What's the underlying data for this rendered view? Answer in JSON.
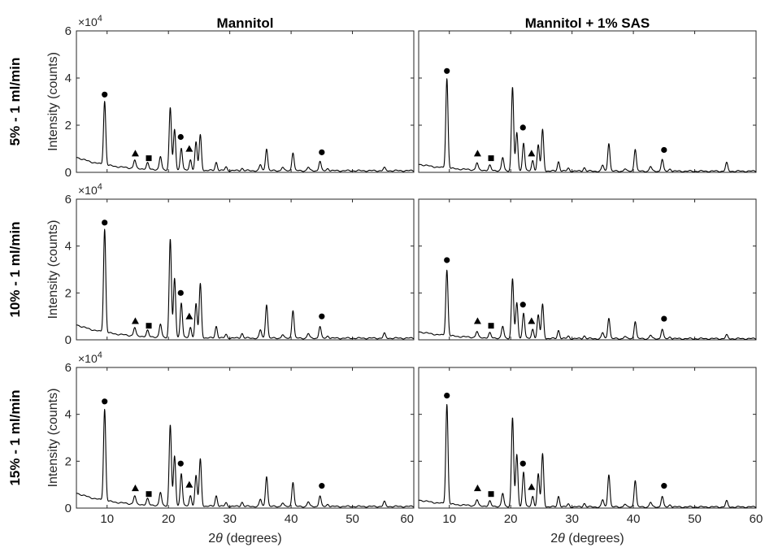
{
  "figure": {
    "column_titles": [
      "Mannitol",
      "Mannitol + 1% SAS"
    ],
    "row_titles": [
      "5% - 1 ml/min",
      "10% - 1 ml/min",
      "15% - 1 ml/min"
    ],
    "xlabel_prefix": "2",
    "xlabel_theta": "θ",
    "xlabel_suffix": " (degrees)",
    "ylabel": "Intensity (counts)",
    "y_exponent_base": "×10",
    "y_exponent_power": "4",
    "colors": {
      "line": "#000000",
      "axes": "#262626",
      "markers": "#000000"
    }
  },
  "chart_data": [
    {
      "type": "line",
      "row": 0,
      "col": 0,
      "xlim": [
        5,
        60
      ],
      "ylim": [
        0,
        6
      ],
      "x_ticks": [
        10,
        20,
        30,
        40,
        50,
        60
      ],
      "y_ticks": [
        0,
        2,
        4,
        6
      ],
      "baseline": {
        "start": 0.65,
        "end": 0.07
      },
      "peaks": [
        [
          9.6,
          2.7
        ],
        [
          14.5,
          0.35
        ],
        [
          16.6,
          0.25
        ],
        [
          18.7,
          0.55
        ],
        [
          20.3,
          2.65
        ],
        [
          21.0,
          1.7
        ],
        [
          22.1,
          0.95
        ],
        [
          23.6,
          0.45
        ],
        [
          24.5,
          1.2
        ],
        [
          25.2,
          1.5
        ],
        [
          27.8,
          0.35
        ],
        [
          29.4,
          0.15
        ],
        [
          32.0,
          0.1
        ],
        [
          35.0,
          0.25
        ],
        [
          36.0,
          0.95
        ],
        [
          38.6,
          0.15
        ],
        [
          40.3,
          0.78
        ],
        [
          42.8,
          0.15
        ],
        [
          44.7,
          0.4
        ],
        [
          46.0,
          0.1
        ],
        [
          55.2,
          0.12
        ]
      ],
      "markers": [
        {
          "shape": "circle",
          "x": 9.6,
          "y": 3.3
        },
        {
          "shape": "triangle",
          "x": 14.6,
          "y": 0.8
        },
        {
          "shape": "square",
          "x": 16.8,
          "y": 0.6
        },
        {
          "shape": "circle",
          "x": 22.0,
          "y": 1.5
        },
        {
          "shape": "triangle",
          "x": 23.4,
          "y": 1.0
        },
        {
          "shape": "circle",
          "x": 45.0,
          "y": 0.85
        }
      ]
    },
    {
      "type": "line",
      "row": 0,
      "col": 1,
      "xlim": [
        5,
        60
      ],
      "ylim": [
        0,
        6
      ],
      "x_ticks": [
        10,
        20,
        30,
        40,
        50,
        60
      ],
      "y_ticks": [
        0,
        2,
        4,
        6
      ],
      "baseline": {
        "start": 0.35,
        "end": 0.05
      },
      "peaks": [
        [
          9.6,
          3.8
        ],
        [
          14.5,
          0.3
        ],
        [
          16.6,
          0.2
        ],
        [
          18.7,
          0.55
        ],
        [
          20.3,
          3.55
        ],
        [
          21.0,
          1.6
        ],
        [
          22.1,
          1.2
        ],
        [
          23.6,
          0.45
        ],
        [
          24.5,
          1.1
        ],
        [
          25.2,
          1.75
        ],
        [
          27.8,
          0.4
        ],
        [
          29.4,
          0.12
        ],
        [
          32.0,
          0.15
        ],
        [
          35.0,
          0.25
        ],
        [
          36.0,
          1.2
        ],
        [
          38.6,
          0.1
        ],
        [
          40.3,
          0.95
        ],
        [
          42.8,
          0.2
        ],
        [
          44.7,
          0.5
        ],
        [
          46.0,
          0.1
        ],
        [
          55.2,
          0.35
        ]
      ],
      "markers": [
        {
          "shape": "circle",
          "x": 9.6,
          "y": 4.3
        },
        {
          "shape": "triangle",
          "x": 14.6,
          "y": 0.8
        },
        {
          "shape": "square",
          "x": 16.8,
          "y": 0.6
        },
        {
          "shape": "circle",
          "x": 22.0,
          "y": 1.9
        },
        {
          "shape": "triangle",
          "x": 23.4,
          "y": 0.8
        },
        {
          "shape": "circle",
          "x": 45.0,
          "y": 0.95
        }
      ]
    },
    {
      "type": "line",
      "row": 1,
      "col": 0,
      "xlim": [
        5,
        60
      ],
      "ylim": [
        0,
        6
      ],
      "x_ticks": [
        10,
        20,
        30,
        40,
        50,
        60
      ],
      "y_ticks": [
        0,
        2,
        4,
        6
      ],
      "baseline": {
        "start": 0.65,
        "end": 0.07
      },
      "peaks": [
        [
          9.6,
          4.4
        ],
        [
          14.5,
          0.35
        ],
        [
          16.6,
          0.25
        ],
        [
          18.7,
          0.55
        ],
        [
          20.3,
          4.2
        ],
        [
          21.0,
          2.5
        ],
        [
          22.1,
          1.5
        ],
        [
          23.6,
          0.45
        ],
        [
          24.5,
          1.45
        ],
        [
          25.2,
          2.3
        ],
        [
          27.8,
          0.5
        ],
        [
          29.4,
          0.15
        ],
        [
          32.0,
          0.2
        ],
        [
          35.0,
          0.35
        ],
        [
          36.0,
          1.45
        ],
        [
          38.6,
          0.15
        ],
        [
          40.3,
          1.2
        ],
        [
          42.8,
          0.2
        ],
        [
          44.7,
          0.5
        ],
        [
          46.0,
          0.1
        ],
        [
          55.2,
          0.2
        ]
      ],
      "markers": [
        {
          "shape": "circle",
          "x": 9.6,
          "y": 5.0
        },
        {
          "shape": "triangle",
          "x": 14.6,
          "y": 0.8
        },
        {
          "shape": "square",
          "x": 16.8,
          "y": 0.6
        },
        {
          "shape": "circle",
          "x": 22.0,
          "y": 2.0
        },
        {
          "shape": "triangle",
          "x": 23.4,
          "y": 1.0
        },
        {
          "shape": "circle",
          "x": 45.0,
          "y": 1.0
        }
      ]
    },
    {
      "type": "line",
      "row": 1,
      "col": 1,
      "xlim": [
        5,
        60
      ],
      "ylim": [
        0,
        6
      ],
      "x_ticks": [
        10,
        20,
        30,
        40,
        50,
        60
      ],
      "y_ticks": [
        0,
        2,
        4,
        6
      ],
      "baseline": {
        "start": 0.35,
        "end": 0.05
      },
      "peaks": [
        [
          9.6,
          2.8
        ],
        [
          14.5,
          0.25
        ],
        [
          16.6,
          0.2
        ],
        [
          18.7,
          0.5
        ],
        [
          20.3,
          2.55
        ],
        [
          21.0,
          1.5
        ],
        [
          22.1,
          1.1
        ],
        [
          23.6,
          0.4
        ],
        [
          24.5,
          1.0
        ],
        [
          25.2,
          1.45
        ],
        [
          27.8,
          0.35
        ],
        [
          29.4,
          0.1
        ],
        [
          32.0,
          0.12
        ],
        [
          35.0,
          0.25
        ],
        [
          36.0,
          0.9
        ],
        [
          38.6,
          0.1
        ],
        [
          40.3,
          0.75
        ],
        [
          42.8,
          0.15
        ],
        [
          44.7,
          0.4
        ],
        [
          46.0,
          0.08
        ],
        [
          55.2,
          0.15
        ]
      ],
      "markers": [
        {
          "shape": "circle",
          "x": 9.6,
          "y": 3.4
        },
        {
          "shape": "triangle",
          "x": 14.6,
          "y": 0.8
        },
        {
          "shape": "square",
          "x": 16.8,
          "y": 0.6
        },
        {
          "shape": "circle",
          "x": 22.0,
          "y": 1.5
        },
        {
          "shape": "triangle",
          "x": 23.4,
          "y": 0.8
        },
        {
          "shape": "circle",
          "x": 45.0,
          "y": 0.9
        }
      ]
    },
    {
      "type": "line",
      "row": 2,
      "col": 0,
      "xlim": [
        5,
        60
      ],
      "ylim": [
        0,
        6
      ],
      "x_ticks": [
        10,
        20,
        30,
        40,
        50,
        60
      ],
      "y_ticks": [
        0,
        2,
        4,
        6
      ],
      "baseline": {
        "start": 0.65,
        "end": 0.07
      },
      "peaks": [
        [
          9.6,
          3.9
        ],
        [
          14.5,
          0.35
        ],
        [
          16.6,
          0.25
        ],
        [
          18.7,
          0.55
        ],
        [
          20.3,
          3.45
        ],
        [
          21.0,
          2.1
        ],
        [
          22.1,
          1.4
        ],
        [
          23.6,
          0.45
        ],
        [
          24.5,
          1.3
        ],
        [
          25.2,
          2.0
        ],
        [
          27.8,
          0.45
        ],
        [
          29.4,
          0.15
        ],
        [
          32.0,
          0.18
        ],
        [
          35.0,
          0.3
        ],
        [
          36.0,
          1.3
        ],
        [
          38.6,
          0.15
        ],
        [
          40.3,
          1.05
        ],
        [
          42.8,
          0.2
        ],
        [
          44.7,
          0.45
        ],
        [
          46.0,
          0.1
        ],
        [
          55.2,
          0.2
        ]
      ],
      "markers": [
        {
          "shape": "circle",
          "x": 9.6,
          "y": 4.55
        },
        {
          "shape": "triangle",
          "x": 14.6,
          "y": 0.85
        },
        {
          "shape": "square",
          "x": 16.8,
          "y": 0.6
        },
        {
          "shape": "circle",
          "x": 22.0,
          "y": 1.9
        },
        {
          "shape": "triangle",
          "x": 23.4,
          "y": 1.0
        },
        {
          "shape": "circle",
          "x": 45.0,
          "y": 0.95
        }
      ]
    },
    {
      "type": "line",
      "row": 2,
      "col": 1,
      "xlim": [
        5,
        60
      ],
      "ylim": [
        0,
        6
      ],
      "x_ticks": [
        10,
        20,
        30,
        40,
        50,
        60
      ],
      "y_ticks": [
        0,
        2,
        4,
        6
      ],
      "baseline": {
        "start": 0.35,
        "end": 0.05
      },
      "peaks": [
        [
          9.6,
          4.25
        ],
        [
          14.5,
          0.25
        ],
        [
          16.6,
          0.2
        ],
        [
          18.7,
          0.55
        ],
        [
          20.3,
          3.8
        ],
        [
          21.0,
          2.2
        ],
        [
          22.1,
          1.5
        ],
        [
          23.6,
          0.45
        ],
        [
          24.5,
          1.4
        ],
        [
          25.2,
          2.25
        ],
        [
          27.8,
          0.45
        ],
        [
          29.4,
          0.12
        ],
        [
          32.0,
          0.15
        ],
        [
          35.0,
          0.3
        ],
        [
          36.0,
          1.4
        ],
        [
          38.6,
          0.12
        ],
        [
          40.3,
          1.15
        ],
        [
          42.8,
          0.2
        ],
        [
          44.7,
          0.45
        ],
        [
          46.0,
          0.1
        ],
        [
          55.2,
          0.25
        ]
      ],
      "markers": [
        {
          "shape": "circle",
          "x": 9.6,
          "y": 4.8
        },
        {
          "shape": "triangle",
          "x": 14.6,
          "y": 0.85
        },
        {
          "shape": "square",
          "x": 16.8,
          "y": 0.6
        },
        {
          "shape": "circle",
          "x": 22.0,
          "y": 1.9
        },
        {
          "shape": "triangle",
          "x": 23.4,
          "y": 0.9
        },
        {
          "shape": "circle",
          "x": 45.0,
          "y": 0.95
        }
      ]
    }
  ]
}
